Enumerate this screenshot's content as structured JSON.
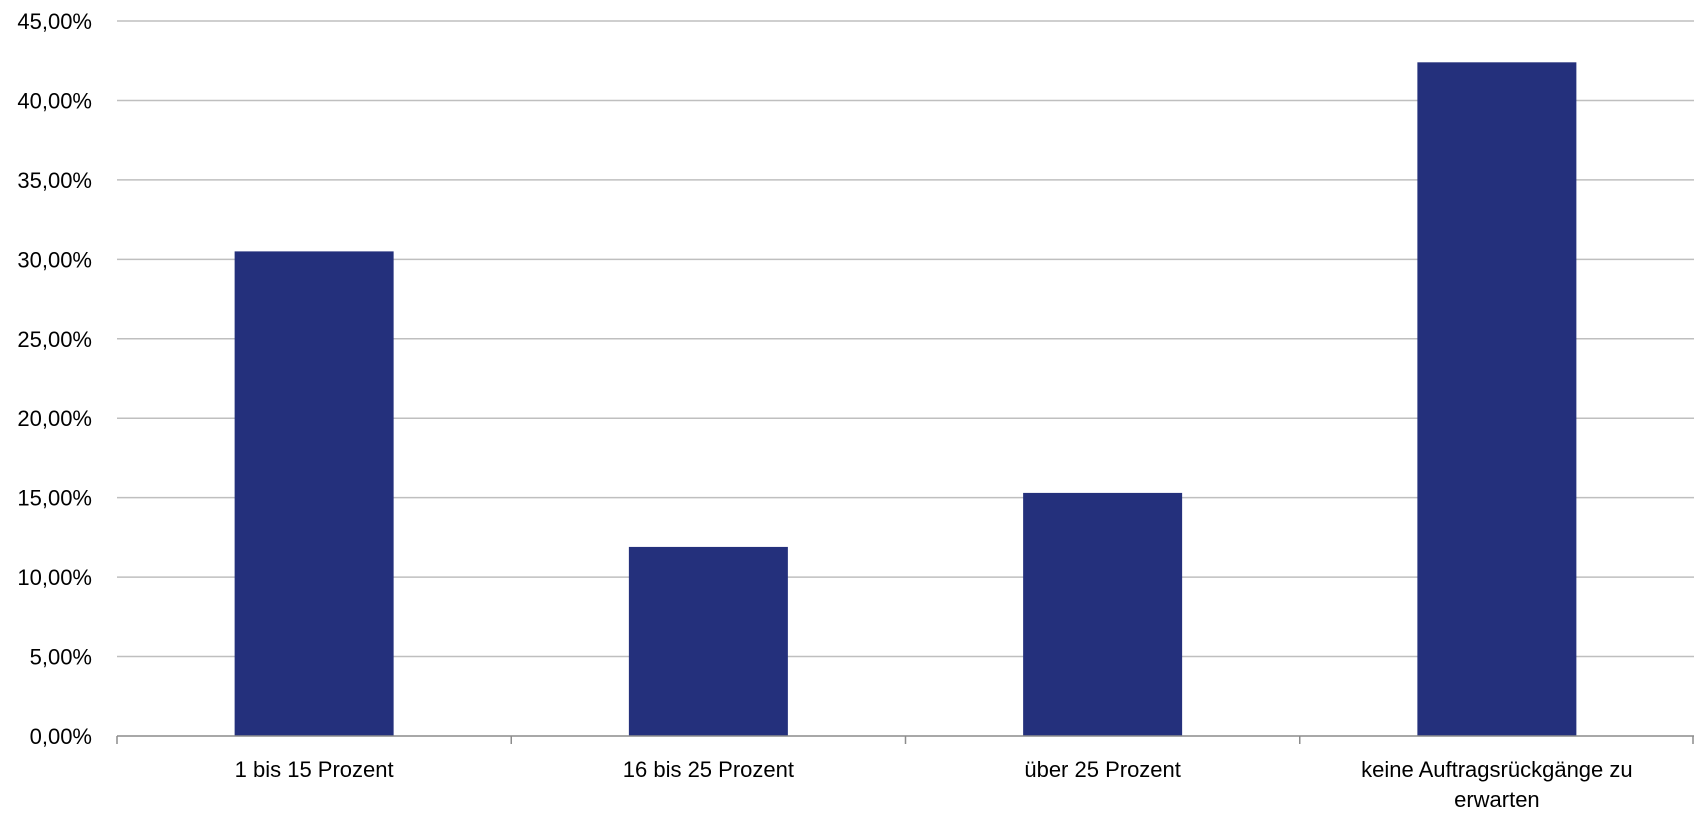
{
  "chart_data": {
    "type": "bar",
    "title": "",
    "xlabel": "",
    "ylabel": "",
    "categories": [
      "1 bis 15 Prozent",
      "16 bis 25 Prozent",
      "über 25 Prozent",
      "keine Auftragsrückgänge zu erwarten"
    ],
    "category_label_lines": [
      [
        "1 bis 15 Prozent"
      ],
      [
        "16 bis 25 Prozent"
      ],
      [
        "über 25 Prozent"
      ],
      [
        "keine Auftragsrückgänge zu",
        "erwarten"
      ]
    ],
    "values": [
      30.5,
      11.9,
      15.3,
      42.4
    ],
    "ylim": [
      0,
      45
    ],
    "y_ticks": [
      0,
      5,
      10,
      15,
      20,
      25,
      30,
      35,
      40,
      45
    ],
    "y_tick_labels": [
      "0,00%",
      "5,00%",
      "10,00%",
      "15,00%",
      "20,00%",
      "25,00%",
      "30,00%",
      "35,00%",
      "40,00%",
      "45,00%"
    ],
    "grid": true,
    "legend": "none",
    "colors": {
      "bar": "#24307C",
      "grid": "#BFBFBF",
      "axis": "#8C8C8C"
    }
  }
}
